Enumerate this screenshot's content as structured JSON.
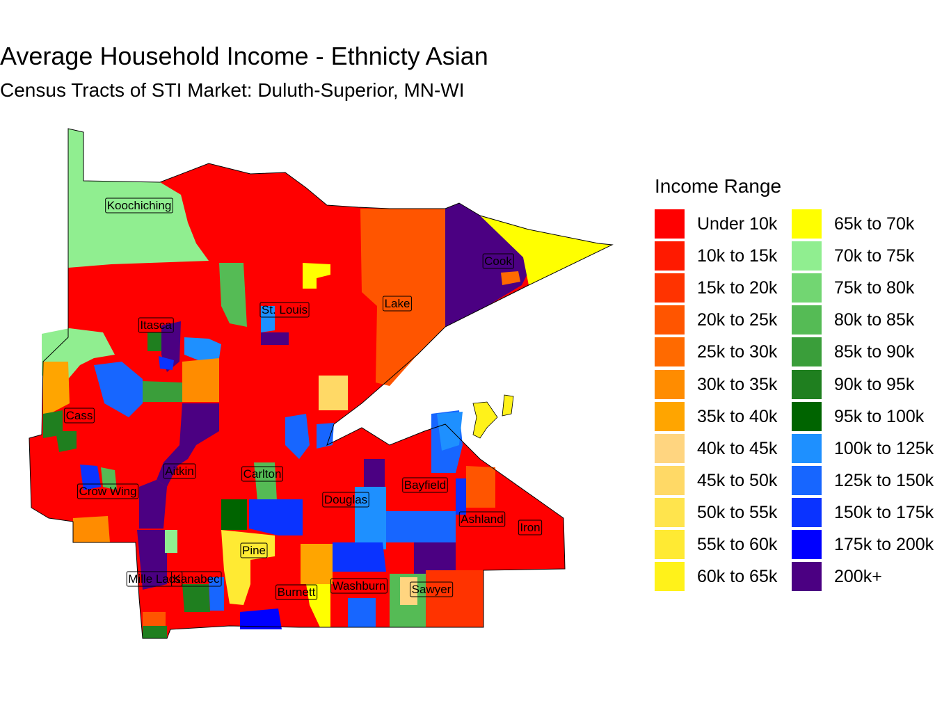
{
  "title": "Average Household Income - Ethnicty Asian",
  "subtitle": "Census Tracts of STI Market: Duluth-Superior, MN-WI",
  "legend": {
    "title": "Income Range",
    "items": [
      {
        "label": "Under 10k",
        "color": "#FF0000"
      },
      {
        "label": "10k to 15k",
        "color": "#FF1A00"
      },
      {
        "label": "15k to 20k",
        "color": "#FF3300"
      },
      {
        "label": "20k to 25k",
        "color": "#FF5500"
      },
      {
        "label": "25k to 30k",
        "color": "#FF6A00"
      },
      {
        "label": "30k to 35k",
        "color": "#FF8C00"
      },
      {
        "label": "35k to 40k",
        "color": "#FFA500"
      },
      {
        "label": "40k to 45k",
        "color": "#FFD580"
      },
      {
        "label": "45k to 50k",
        "color": "#FFD966"
      },
      {
        "label": "50k to 55k",
        "color": "#FFE44D"
      },
      {
        "label": "55k to 60k",
        "color": "#FFEA33"
      },
      {
        "label": "60k to 65k",
        "color": "#FFF21A"
      },
      {
        "label": "65k to 70k",
        "color": "#FFFF00"
      },
      {
        "label": "70k to 75k",
        "color": "#90EE90"
      },
      {
        "label": "75k to 80k",
        "color": "#72D672"
      },
      {
        "label": "80k to 85k",
        "color": "#55BB55"
      },
      {
        "label": "85k to 90k",
        "color": "#3A9E3A"
      },
      {
        "label": "90k to 95k",
        "color": "#1F7F1F"
      },
      {
        "label": "95k to 100k",
        "color": "#006400"
      },
      {
        "label": "100k to 125k",
        "color": "#1E90FF"
      },
      {
        "label": "125k to 150k",
        "color": "#1766FF"
      },
      {
        "label": "150k to 175k",
        "color": "#0A33FF"
      },
      {
        "label": "175k to 200k",
        "color": "#0000FF"
      },
      {
        "label": "200k+",
        "color": "#4B0082"
      }
    ]
  },
  "counties": [
    "Koochiching",
    "Cook",
    "St. Louis",
    "Lake",
    "Itasca",
    "Cass",
    "Aitkin",
    "Carlton",
    "Crow Wing",
    "Bayfield",
    "Douglas",
    "Ashland",
    "Iron",
    "Pine",
    "Mille Lacs",
    "Kanabec",
    "Burnett",
    "Washburn",
    "Sawyer"
  ]
}
